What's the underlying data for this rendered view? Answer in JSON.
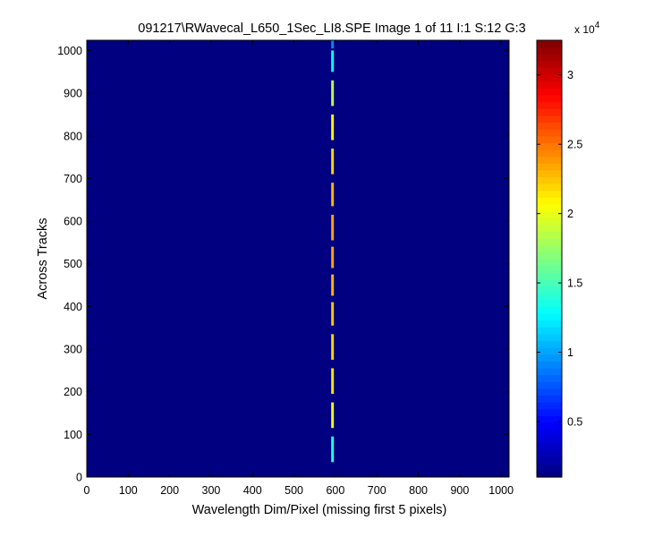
{
  "chart_data": {
    "type": "heatmap",
    "title": "091217\\RWavecal_L650_1Sec_LI8.SPE  Image 1 of 11  I:1  S:12  G:3",
    "xlabel": "Wavelength Dim/Pixel (missing first 5 pixels)",
    "ylabel": "Across Tracks",
    "xlim": [
      0,
      1019
    ],
    "ylim": [
      0,
      1024
    ],
    "x_ticks": [
      0,
      100,
      200,
      300,
      400,
      500,
      600,
      700,
      800,
      900,
      1000
    ],
    "y_ticks": [
      0,
      100,
      200,
      300,
      400,
      500,
      600,
      700,
      800,
      900,
      1000
    ],
    "background_value": 1000,
    "colormap": "jet",
    "colorbar": {
      "clim": [
        1000,
        32500
      ],
      "ticks": [
        0.5,
        1,
        1.5,
        2,
        2.5,
        3
      ],
      "multiplier_label": "x 10",
      "multiplier_exponent": "4",
      "scale": 10000
    },
    "line_x": 593,
    "line_segments": [
      {
        "y0": 35,
        "y1": 95,
        "value": 14000
      },
      {
        "y0": 115,
        "y1": 175,
        "value": 20000
      },
      {
        "y0": 195,
        "y1": 255,
        "value": 21500
      },
      {
        "y0": 275,
        "y1": 335,
        "value": 22000
      },
      {
        "y0": 355,
        "y1": 410,
        "value": 22500
      },
      {
        "y0": 425,
        "y1": 475,
        "value": 23000
      },
      {
        "y0": 490,
        "y1": 540,
        "value": 23500
      },
      {
        "y0": 555,
        "y1": 615,
        "value": 23500
      },
      {
        "y0": 635,
        "y1": 690,
        "value": 23000
      },
      {
        "y0": 710,
        "y1": 770,
        "value": 22000
      },
      {
        "y0": 790,
        "y1": 850,
        "value": 21000
      },
      {
        "y0": 870,
        "y1": 930,
        "value": 18500
      },
      {
        "y0": 950,
        "y1": 1000,
        "value": 13000
      },
      {
        "y0": 1005,
        "y1": 1024,
        "value": 9000
      }
    ]
  }
}
